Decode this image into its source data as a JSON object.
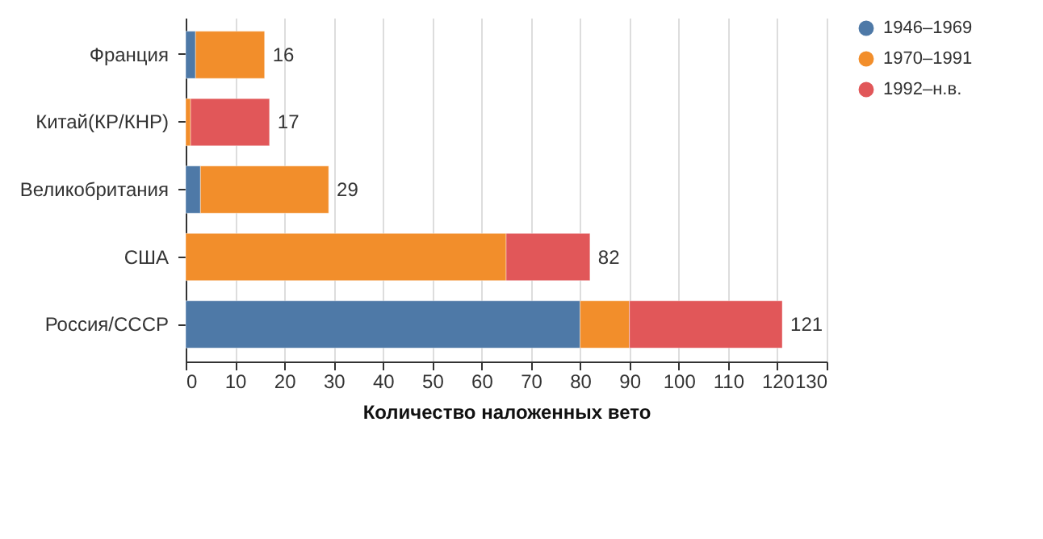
{
  "chart_data": {
    "type": "bar",
    "orientation": "horizontal",
    "stacked": true,
    "xlabel": "Количество наложенных вето",
    "categories": [
      "Франция",
      "Китай(КР/КНР)",
      "Великобритания",
      "США",
      "Россия/СССР"
    ],
    "series": [
      {
        "name": "1946–1969",
        "color": "#4e79a7",
        "values": [
          2,
          null,
          3,
          null,
          80
        ]
      },
      {
        "name": "1970–1991",
        "color": "#f28e2b",
        "values": [
          14,
          1,
          26,
          65,
          10
        ]
      },
      {
        "name": "1992–н.в.",
        "color": "#e15759",
        "values": [
          null,
          16,
          null,
          17,
          31
        ]
      }
    ],
    "totals": [
      "16",
      "17",
      "29",
      "82",
      "121"
    ],
    "xlim": [
      0,
      130
    ],
    "xticks": [
      0,
      10,
      20,
      30,
      40,
      50,
      60,
      70,
      80,
      90,
      100,
      110,
      120,
      130
    ],
    "grid": "x",
    "legend": "top right"
  }
}
